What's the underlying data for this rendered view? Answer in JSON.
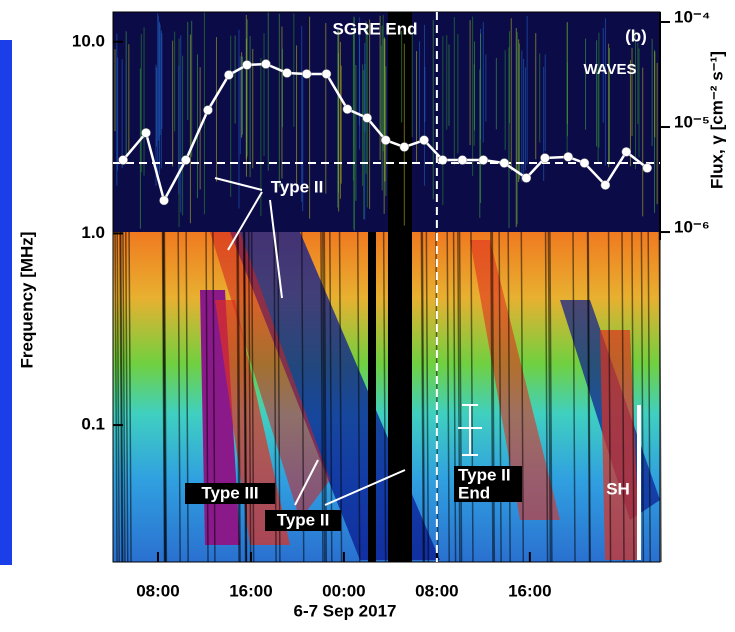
{
  "chart_data": {
    "type": "line",
    "x_label": "6-7 Sep 2017",
    "y_label": "Frequency [MHz]",
    "y2_label": "Flux, γ [cm⁻² s⁻¹]",
    "log_y": true,
    "log_y2": true,
    "xlim": [
      4.13,
      51.2
    ],
    "xticks": [
      {
        "value": 8,
        "label": "08:00"
      },
      {
        "value": 16,
        "label": "16:00"
      },
      {
        "value": 24,
        "label": "00:00"
      },
      {
        "value": 32,
        "label": "08:00"
      },
      {
        "value": 40,
        "label": "16:00"
      }
    ],
    "ylim": [
      0.0193,
      14.3
    ],
    "yticks": [
      {
        "value": 10,
        "label": "10.0"
      },
      {
        "value": 1,
        "label": "1.0"
      },
      0.1
    ],
    "y2lim": [
      8.4e-07,
      0.0001245
    ],
    "y2ticks": [
      {
        "value": 0.0001,
        "label": "10⁻⁴"
      },
      {
        "value": 1e-05,
        "label": "10⁻⁵"
      },
      {
        "value": 1e-06,
        "label": "10⁻⁶"
      }
    ],
    "x": [
      5.0,
      6.97,
      8.52,
      10.4,
      12.3,
      14.1,
      15.66,
      17.29,
      19.1,
      20.8,
      22.5,
      24.3,
      26.0,
      27.6,
      29.2,
      30.9,
      32.5,
      34.2,
      36.0,
      37.8,
      39.7,
      41.3,
      43.3,
      44.7,
      46.5,
      48.3,
      50.1
    ],
    "series": [
      {
        "color": "#ffffff",
        "axis": "y2",
        "values": [
          4.85e-06,
          8.8e-06,
          2e-06,
          4.85e-06,
          1.45e-05,
          3.13e-05,
          3.9e-05,
          3.98e-05,
          3.27e-05,
          3.2e-05,
          3.2e-05,
          1.48e-05,
          1.22e-05,
          7.5e-06,
          6.45e-06,
          7.5e-06,
          4.85e-06,
          4.85e-06,
          4.85e-06,
          4.54e-06,
          3.27e-06,
          5.07e-06,
          5.2e-06,
          4.54e-06,
          2.8e-06,
          5.8e-06,
          4.07e-06
        ]
      }
    ],
    "background_flux": 4.54e-06,
    "sgre_end_time": 32.0,
    "annotations": {
      "sgre_end": "SGRE End",
      "panel": "(b)",
      "instrument": "WAVES",
      "type2_a": "Type II",
      "type3": "Type III",
      "type2_b": "Type II",
      "type2_end_1": "Type II",
      "type2_end_2": "End",
      "sh": "SH"
    }
  }
}
